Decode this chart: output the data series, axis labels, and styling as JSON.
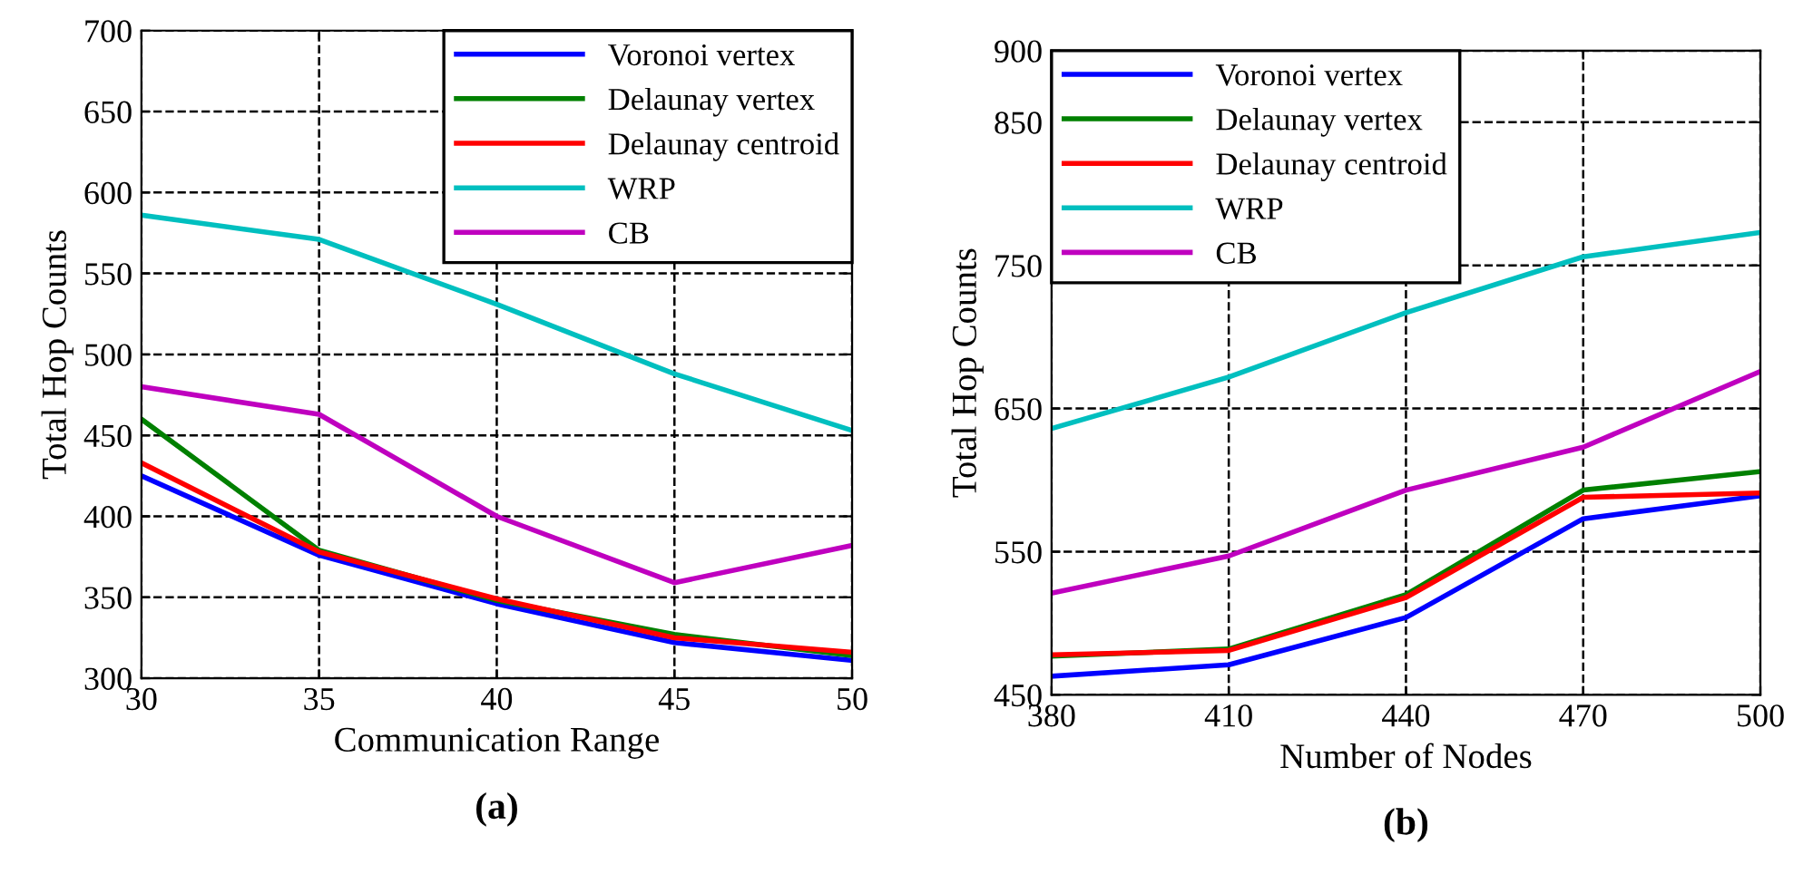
{
  "chart_data": [
    {
      "type": "line",
      "title": "(a)",
      "xlabel": "Communication Range",
      "ylabel": "Total Hop Counts",
      "x": [
        30,
        35,
        40,
        45,
        50
      ],
      "xlim": [
        30,
        50
      ],
      "xticks": [
        30,
        35,
        40,
        45,
        50
      ],
      "ylim": [
        300,
        700
      ],
      "yticks": [
        300,
        350,
        400,
        450,
        500,
        550,
        600,
        650,
        700
      ],
      "grid": true,
      "legend": "top right",
      "series": [
        {
          "name": "Voronoi vertex",
          "color": "#0000ff",
          "values": [
            425,
            376,
            346,
            322,
            311
          ]
        },
        {
          "name": "Delaunay vertex",
          "color": "#008000",
          "values": [
            460,
            379,
            348,
            327,
            314
          ]
        },
        {
          "name": "Delaunay centroid",
          "color": "#ff0000",
          "values": [
            433,
            378,
            349,
            325,
            316
          ]
        },
        {
          "name": "WRP",
          "color": "#00bfbf",
          "values": [
            586,
            571,
            531,
            488,
            453
          ]
        },
        {
          "name": "CB",
          "color": "#bf00bf",
          "values": [
            480,
            463,
            400,
            359,
            382
          ]
        }
      ]
    },
    {
      "type": "line",
      "title": "(b)",
      "xlabel": "Number of Nodes",
      "ylabel": "Total Hop Counts",
      "x": [
        380,
        410,
        440,
        470,
        500
      ],
      "xlim": [
        380,
        500
      ],
      "xticks": [
        380,
        410,
        440,
        470,
        500
      ],
      "ylim": [
        450,
        900
      ],
      "yticks": [
        450,
        550,
        650,
        750,
        850,
        900
      ],
      "grid": true,
      "legend": "top left",
      "series": [
        {
          "name": "Voronoi vertex",
          "color": "#0000ff",
          "values": [
            463,
            471,
            504,
            573,
            589
          ]
        },
        {
          "name": "Delaunay vertex",
          "color": "#008000",
          "values": [
            477,
            482,
            520,
            593,
            606
          ]
        },
        {
          "name": "Delaunay centroid",
          "color": "#ff0000",
          "values": [
            478,
            481,
            518,
            588,
            591
          ]
        },
        {
          "name": "WRP",
          "color": "#00bfbf",
          "values": [
            636,
            672,
            717,
            756,
            773
          ]
        },
        {
          "name": "CB",
          "color": "#bf00bf",
          "values": [
            521,
            547,
            593,
            623,
            676
          ]
        }
      ]
    }
  ]
}
